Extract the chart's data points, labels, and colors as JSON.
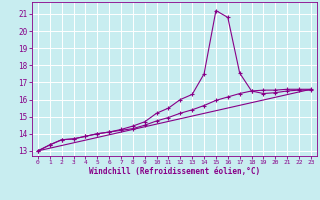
{
  "xlabel": "Windchill (Refroidissement éolien,°C)",
  "xlim": [
    -0.5,
    23.5
  ],
  "ylim": [
    12.7,
    21.7
  ],
  "yticks": [
    13,
    14,
    15,
    16,
    17,
    18,
    19,
    20,
    21
  ],
  "xticks": [
    0,
    1,
    2,
    3,
    4,
    5,
    6,
    7,
    8,
    9,
    10,
    11,
    12,
    13,
    14,
    15,
    16,
    17,
    18,
    19,
    20,
    21,
    22,
    23
  ],
  "bg_color": "#c8edf0",
  "grid_color": "#b0d8dc",
  "line_color": "#880088",
  "line1_x": [
    0,
    1,
    2,
    3,
    4,
    5,
    6,
    7,
    8,
    9,
    10,
    11,
    12,
    13,
    14,
    15,
    16,
    17,
    18,
    19,
    20,
    21,
    22,
    23
  ],
  "line1_y": [
    13.0,
    13.35,
    13.65,
    13.7,
    13.85,
    14.0,
    14.1,
    14.25,
    14.45,
    14.7,
    15.2,
    15.5,
    16.0,
    16.3,
    17.5,
    21.2,
    20.8,
    17.55,
    16.5,
    16.35,
    16.4,
    16.5,
    16.55,
    16.55
  ],
  "line2_x": [
    0,
    1,
    2,
    3,
    4,
    5,
    6,
    7,
    8,
    9,
    10,
    11,
    12,
    13,
    14,
    15,
    16,
    17,
    18,
    19,
    20,
    21,
    22,
    23
  ],
  "line2_y": [
    13.0,
    13.35,
    13.65,
    13.7,
    13.85,
    14.0,
    14.1,
    14.2,
    14.3,
    14.5,
    14.75,
    14.95,
    15.2,
    15.4,
    15.65,
    15.95,
    16.15,
    16.35,
    16.5,
    16.55,
    16.55,
    16.6,
    16.6,
    16.6
  ],
  "line3_x": [
    0,
    23
  ],
  "line3_y": [
    13.0,
    16.6
  ]
}
